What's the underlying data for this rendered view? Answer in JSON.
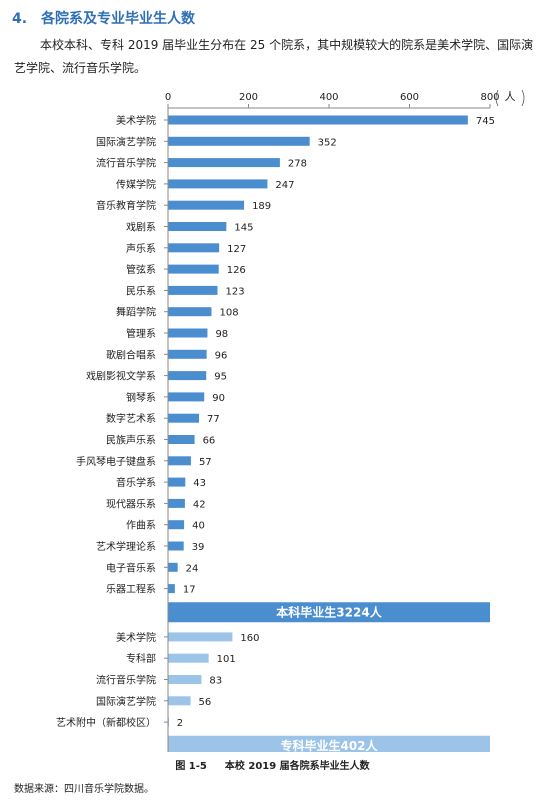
{
  "section": {
    "number": "4.",
    "title": "各院系及专业毕业生人数",
    "intro": "本校本科、专科 2019 届毕业生分布在 25 个院系，其中规模较大的院系是美术学院、国际演艺学院、流行音乐学院。"
  },
  "chart_data": {
    "type": "bar",
    "orientation": "horizontal",
    "unit": "人",
    "xlim": [
      0,
      800
    ],
    "xticks": [
      0,
      200,
      400,
      600,
      800
    ],
    "groups": [
      {
        "name": "本科毕业生3224人",
        "color": "#4a8ed0",
        "categories": [
          "美术学院",
          "国际演艺学院",
          "流行音乐学院",
          "传媒学院",
          "音乐教育学院",
          "戏剧系",
          "声乐系",
          "管弦系",
          "民乐系",
          "舞蹈学院",
          "管理系",
          "歌剧合唱系",
          "戏剧影视文学系",
          "钢琴系",
          "数字艺术系",
          "民族声乐系",
          "手风琴电子键盘系",
          "音乐学系",
          "现代器乐系",
          "作曲系",
          "艺术学理论系",
          "电子音乐系",
          "乐器工程系"
        ],
        "values": [
          745,
          352,
          278,
          247,
          189,
          145,
          127,
          126,
          123,
          108,
          98,
          96,
          95,
          90,
          77,
          66,
          57,
          43,
          42,
          40,
          39,
          24,
          17
        ]
      },
      {
        "name": "专科毕业生402人",
        "color": "#9cc3e8",
        "categories": [
          "美术学院",
          "专科部",
          "流行音乐学院",
          "国际演艺学院",
          "艺术附中（新都校区）"
        ],
        "values": [
          160,
          101,
          83,
          56,
          2
        ]
      }
    ]
  },
  "figure": {
    "label": "图 1-5",
    "title": "本校 2019 届各院系毕业生人数"
  },
  "source": "数据来源：四川音乐学院数据。"
}
